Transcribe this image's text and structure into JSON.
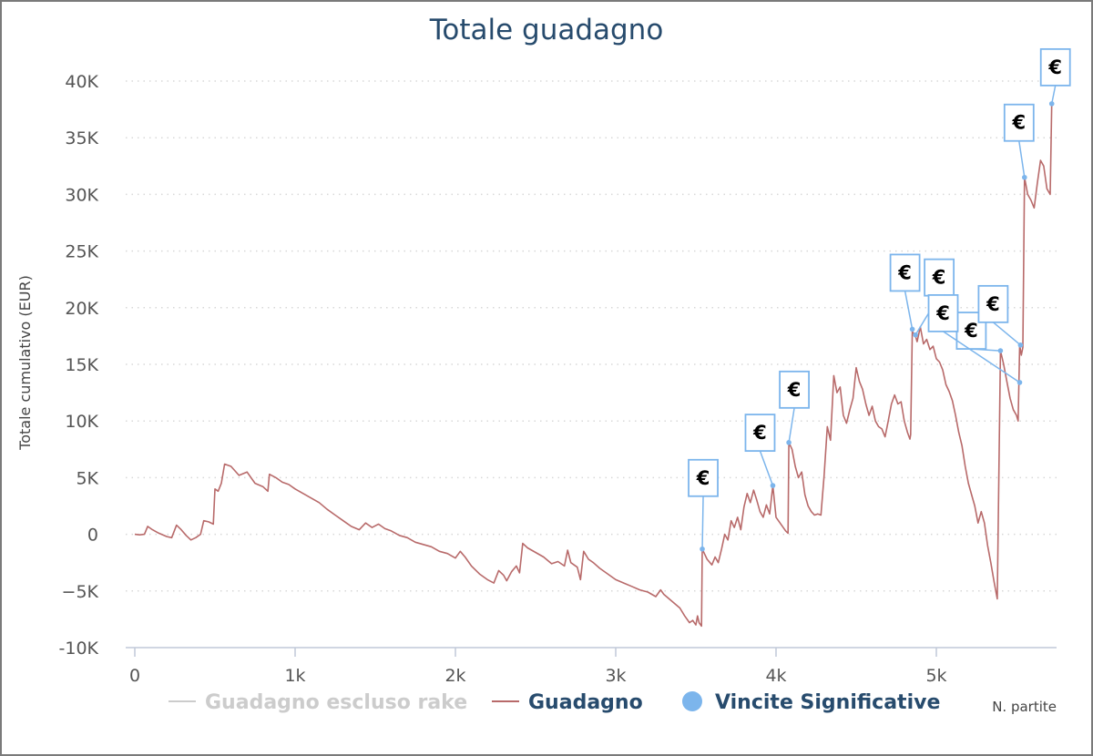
{
  "chart_data": {
    "type": "line",
    "title": "Totale guadagno",
    "xlabel": "N. partite",
    "ylabel": "Totale cumulativo (EUR)",
    "xlim": [
      0,
      5720
    ],
    "ylim": [
      -10000,
      40000
    ],
    "grid": "horizontal dotted",
    "x_ticks": [
      {
        "value": 0,
        "label": "0"
      },
      {
        "value": 1000,
        "label": "1k"
      },
      {
        "value": 2000,
        "label": "2k"
      },
      {
        "value": 3000,
        "label": "3k"
      },
      {
        "value": 4000,
        "label": "4k"
      },
      {
        "value": 5000,
        "label": "5k"
      }
    ],
    "y_ticks": [
      {
        "value": -10000,
        "label": "-10K"
      },
      {
        "value": -5000,
        "label": "−5K"
      },
      {
        "value": 0,
        "label": "0"
      },
      {
        "value": 5000,
        "label": "5K"
      },
      {
        "value": 10000,
        "label": "10K"
      },
      {
        "value": 15000,
        "label": "15K"
      },
      {
        "value": 20000,
        "label": "20K"
      },
      {
        "value": 25000,
        "label": "25K"
      },
      {
        "value": 30000,
        "label": "30K"
      },
      {
        "value": 35000,
        "label": "35K"
      },
      {
        "value": 40000,
        "label": "40K"
      }
    ],
    "legend": [
      {
        "name": "Guadagno escluso rake",
        "color": "#cccccc",
        "symbol": "line"
      },
      {
        "name": "Guadagno",
        "color": "#b86a6a",
        "symbol": "line"
      },
      {
        "name": "Vincite Significative",
        "color": "#7cb5ec",
        "symbol": "circle"
      }
    ],
    "legend_placement": "bottom",
    "series": [
      {
        "name": "Guadagno",
        "color": "#b86a6a",
        "points": [
          [
            0,
            0
          ],
          [
            30,
            -50
          ],
          [
            60,
            0
          ],
          [
            80,
            700
          ],
          [
            110,
            400
          ],
          [
            150,
            100
          ],
          [
            200,
            -200
          ],
          [
            230,
            -300
          ],
          [
            260,
            800
          ],
          [
            290,
            400
          ],
          [
            320,
            -100
          ],
          [
            350,
            -500
          ],
          [
            380,
            -300
          ],
          [
            410,
            0
          ],
          [
            430,
            1200
          ],
          [
            460,
            1100
          ],
          [
            490,
            900
          ],
          [
            500,
            4000
          ],
          [
            520,
            3800
          ],
          [
            540,
            4500
          ],
          [
            560,
            6200
          ],
          [
            600,
            6000
          ],
          [
            650,
            5200
          ],
          [
            700,
            5500
          ],
          [
            750,
            4500
          ],
          [
            800,
            4200
          ],
          [
            830,
            3800
          ],
          [
            840,
            5300
          ],
          [
            880,
            5000
          ],
          [
            920,
            4600
          ],
          [
            960,
            4400
          ],
          [
            1000,
            4000
          ],
          [
            1050,
            3600
          ],
          [
            1100,
            3200
          ],
          [
            1150,
            2800
          ],
          [
            1200,
            2200
          ],
          [
            1250,
            1700
          ],
          [
            1300,
            1200
          ],
          [
            1350,
            700
          ],
          [
            1400,
            400
          ],
          [
            1440,
            1000
          ],
          [
            1480,
            600
          ],
          [
            1520,
            900
          ],
          [
            1560,
            500
          ],
          [
            1600,
            300
          ],
          [
            1650,
            -100
          ],
          [
            1700,
            -300
          ],
          [
            1750,
            -700
          ],
          [
            1800,
            -900
          ],
          [
            1850,
            -1100
          ],
          [
            1900,
            -1500
          ],
          [
            1950,
            -1700
          ],
          [
            2000,
            -2100
          ],
          [
            2030,
            -1500
          ],
          [
            2060,
            -2000
          ],
          [
            2100,
            -2800
          ],
          [
            2150,
            -3500
          ],
          [
            2200,
            -4000
          ],
          [
            2240,
            -4300
          ],
          [
            2270,
            -3200
          ],
          [
            2300,
            -3600
          ],
          [
            2320,
            -4100
          ],
          [
            2350,
            -3300
          ],
          [
            2380,
            -2800
          ],
          [
            2400,
            -3400
          ],
          [
            2420,
            -800
          ],
          [
            2450,
            -1200
          ],
          [
            2500,
            -1600
          ],
          [
            2550,
            -2000
          ],
          [
            2600,
            -2600
          ],
          [
            2640,
            -2400
          ],
          [
            2680,
            -2800
          ],
          [
            2700,
            -1400
          ],
          [
            2720,
            -2500
          ],
          [
            2760,
            -2900
          ],
          [
            2780,
            -4000
          ],
          [
            2800,
            -1500
          ],
          [
            2830,
            -2200
          ],
          [
            2860,
            -2500
          ],
          [
            2900,
            -3000
          ],
          [
            2950,
            -3500
          ],
          [
            3000,
            -4000
          ],
          [
            3050,
            -4300
          ],
          [
            3100,
            -4600
          ],
          [
            3150,
            -4900
          ],
          [
            3200,
            -5100
          ],
          [
            3250,
            -5500
          ],
          [
            3280,
            -4900
          ],
          [
            3300,
            -5300
          ],
          [
            3350,
            -5900
          ],
          [
            3400,
            -6500
          ],
          [
            3430,
            -7200
          ],
          [
            3460,
            -7800
          ],
          [
            3480,
            -7600
          ],
          [
            3500,
            -8000
          ],
          [
            3510,
            -7200
          ],
          [
            3520,
            -7800
          ],
          [
            3535,
            -8100
          ],
          [
            3540,
            -1300
          ],
          [
            3570,
            -2200
          ],
          [
            3600,
            -2700
          ],
          [
            3620,
            -2000
          ],
          [
            3640,
            -2500
          ],
          [
            3660,
            -1300
          ],
          [
            3680,
            0
          ],
          [
            3700,
            -500
          ],
          [
            3720,
            1200
          ],
          [
            3740,
            600
          ],
          [
            3760,
            1500
          ],
          [
            3780,
            400
          ],
          [
            3800,
            2400
          ],
          [
            3820,
            3600
          ],
          [
            3840,
            2800
          ],
          [
            3860,
            3900
          ],
          [
            3880,
            3000
          ],
          [
            3900,
            2000
          ],
          [
            3920,
            1500
          ],
          [
            3940,
            2600
          ],
          [
            3960,
            1800
          ],
          [
            3980,
            4300
          ],
          [
            4000,
            1500
          ],
          [
            4030,
            900
          ],
          [
            4060,
            300
          ],
          [
            4075,
            100
          ],
          [
            4080,
            8100
          ],
          [
            4100,
            7500
          ],
          [
            4120,
            6000
          ],
          [
            4140,
            5000
          ],
          [
            4160,
            5500
          ],
          [
            4180,
            3500
          ],
          [
            4200,
            2500
          ],
          [
            4220,
            2000
          ],
          [
            4240,
            1700
          ],
          [
            4260,
            1800
          ],
          [
            4280,
            1700
          ],
          [
            4300,
            5200
          ],
          [
            4320,
            9500
          ],
          [
            4340,
            8300
          ],
          [
            4360,
            14000
          ],
          [
            4380,
            12500
          ],
          [
            4400,
            13000
          ],
          [
            4420,
            10500
          ],
          [
            4440,
            9800
          ],
          [
            4460,
            11000
          ],
          [
            4480,
            12000
          ],
          [
            4500,
            14700
          ],
          [
            4520,
            13500
          ],
          [
            4540,
            12800
          ],
          [
            4560,
            11500
          ],
          [
            4580,
            10500
          ],
          [
            4600,
            11300
          ],
          [
            4620,
            10000
          ],
          [
            4640,
            9500
          ],
          [
            4660,
            9300
          ],
          [
            4680,
            8600
          ],
          [
            4700,
            10000
          ],
          [
            4720,
            11500
          ],
          [
            4740,
            12300
          ],
          [
            4760,
            11500
          ],
          [
            4780,
            11700
          ],
          [
            4800,
            10000
          ],
          [
            4820,
            9000
          ],
          [
            4835,
            8400
          ],
          [
            4840,
            8800
          ],
          [
            4850,
            17900
          ],
          [
            4870,
            17500
          ],
          [
            4880,
            17000
          ],
          [
            4900,
            18300
          ],
          [
            4920,
            16800
          ],
          [
            4940,
            17200
          ],
          [
            4960,
            16300
          ],
          [
            4980,
            16600
          ],
          [
            5000,
            15500
          ],
          [
            5020,
            15200
          ],
          [
            5040,
            14500
          ],
          [
            5060,
            13200
          ],
          [
            5080,
            12600
          ],
          [
            5100,
            11800
          ],
          [
            5120,
            10500
          ],
          [
            5140,
            9000
          ],
          [
            5160,
            7800
          ],
          [
            5180,
            6000
          ],
          [
            5200,
            4500
          ],
          [
            5220,
            3500
          ],
          [
            5240,
            2500
          ],
          [
            5260,
            1000
          ],
          [
            5280,
            2000
          ],
          [
            5300,
            1000
          ],
          [
            5320,
            -1000
          ],
          [
            5340,
            -2500
          ],
          [
            5360,
            -4200
          ],
          [
            5380,
            -5700
          ],
          [
            5400,
            16200
          ],
          [
            5420,
            15000
          ],
          [
            5440,
            13500
          ],
          [
            5460,
            12000
          ],
          [
            5480,
            11000
          ],
          [
            5500,
            10500
          ],
          [
            5510,
            10000
          ],
          [
            5520,
            16700
          ],
          [
            5530,
            15800
          ],
          [
            5540,
            16500
          ],
          [
            5550,
            31500
          ],
          [
            5570,
            30000
          ],
          [
            5590,
            29500
          ],
          [
            5610,
            28800
          ],
          [
            5630,
            31000
          ],
          [
            5650,
            33000
          ],
          [
            5670,
            32500
          ],
          [
            5690,
            30500
          ],
          [
            5710,
            30000
          ],
          [
            5720,
            38000
          ]
        ]
      }
    ],
    "significant_wins": {
      "name": "Vincite Significative",
      "color": "#7cb5ec",
      "marker_label": "€",
      "points": [
        {
          "x": 3540,
          "y": -1300,
          "flag_dx": -3,
          "flag_dy": -58
        },
        {
          "x": 3980,
          "y": 4300,
          "flag_dx": -18,
          "flag_dy": -38
        },
        {
          "x": 4080,
          "y": 8100,
          "flag_dx": 2,
          "flag_dy": -38
        },
        {
          "x": 4850,
          "y": 18100,
          "flag_dx": -12,
          "flag_dy": -42
        },
        {
          "x": 4870,
          "y": 17600,
          "flag_dx": 22,
          "flag_dy": -43
        },
        {
          "x": 5400,
          "y": 16200,
          "flag_dx": -36,
          "flag_dy": -2
        },
        {
          "x": 5520,
          "y": 13400,
          "flag_dx": -88,
          "flag_dy": -56
        },
        {
          "x": 5525,
          "y": 16700,
          "flag_dx": -34,
          "flag_dy": -25
        },
        {
          "x": 5550,
          "y": 31500,
          "flag_dx": -10,
          "flag_dy": -40
        },
        {
          "x": 5720,
          "y": 38000,
          "flag_dx": 0,
          "flag_dy": -20
        }
      ]
    }
  }
}
